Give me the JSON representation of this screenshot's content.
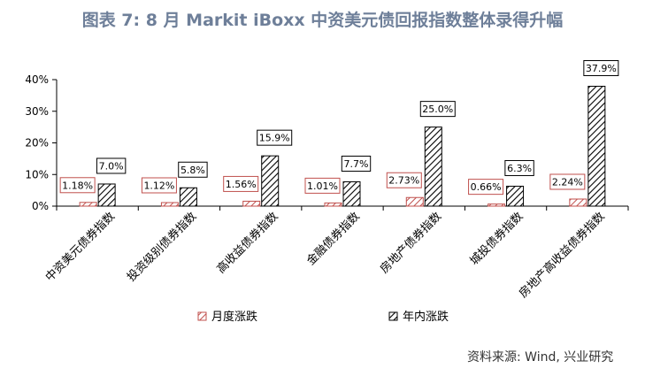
{
  "title": "图表 7: 8 月 Markit iBoxx 中资美元债回报指数整体录得升幅",
  "source": "资料来源: Wind, 兴业研究",
  "chart_data": {
    "type": "bar",
    "categories": [
      "中资美元债券指数",
      "投资级别债券指数",
      "高收益债券指数",
      "金融债券指数",
      "房地产债券指数",
      "城投债券指数",
      "房地产高收益债券指数"
    ],
    "series": [
      {
        "name": "月度涨跌",
        "values": [
          1.18,
          1.12,
          1.56,
          1.01,
          2.73,
          0.66,
          2.24
        ],
        "labels": [
          "1.18%",
          "1.12%",
          "1.56%",
          "1.01%",
          "2.73%",
          "0.66%",
          "2.24%"
        ],
        "color": "#c0504d"
      },
      {
        "name": "年内涨跌",
        "values": [
          7.0,
          5.8,
          15.9,
          7.7,
          25.0,
          6.3,
          37.9
        ],
        "labels": [
          "7.0%",
          "5.8%",
          "15.9%",
          "7.7%",
          "25.0%",
          "6.3%",
          "37.9%"
        ],
        "color": "#000000"
      }
    ],
    "ylim": [
      0,
      40
    ],
    "yticks": [
      0,
      10,
      20,
      30,
      40
    ],
    "ytick_labels": [
      "0%",
      "10%",
      "20%",
      "30%",
      "40%"
    ],
    "legend_position": "bottom"
  }
}
